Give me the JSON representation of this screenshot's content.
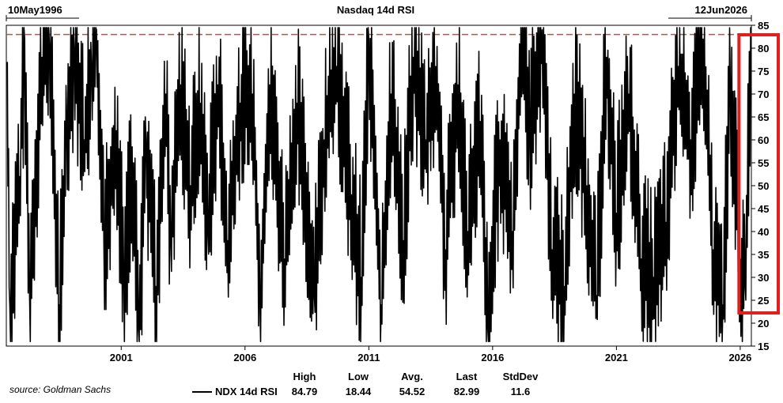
{
  "chart_data": {
    "type": "line",
    "title": "Nasdaq 14d RSI",
    "start_label": "10May1996",
    "end_label": "12Jun2026",
    "x_tick_labels": [
      "2001",
      "2006",
      "2011",
      "2016",
      "2021",
      "2026"
    ],
    "y_tick_labels": [
      "15",
      "20",
      "25",
      "30",
      "35",
      "40",
      "45",
      "50",
      "55",
      "60",
      "65",
      "70",
      "75",
      "80",
      "85"
    ],
    "ylim": [
      15,
      85
    ],
    "x_range_years": [
      1996.36,
      2026.45
    ],
    "reference_line": {
      "y": 83,
      "style": "dashed",
      "color": "#c0504d"
    },
    "highlight_box": {
      "x_range_years": [
        2025.95,
        2026.45
      ],
      "color": "#e02020"
    },
    "series": [
      {
        "name": "NDX 14d RSI",
        "color": "#000000",
        "points": [
          [
            1996.4,
            77
          ],
          [
            1996.5,
            24
          ],
          [
            1996.9,
            52
          ],
          [
            1997.1,
            82
          ],
          [
            1997.3,
            26
          ],
          [
            1997.8,
            78
          ],
          [
            1998.1,
            81
          ],
          [
            1998.5,
            24
          ],
          [
            1998.8,
            64
          ],
          [
            1999.1,
            80
          ],
          [
            1999.5,
            60
          ],
          [
            1999.8,
            76
          ],
          [
            2000.0,
            84
          ],
          [
            2000.3,
            38
          ],
          [
            2000.8,
            62
          ],
          [
            2001.1,
            30
          ],
          [
            2001.5,
            55
          ],
          [
            2001.7,
            18.44
          ],
          [
            2002.0,
            60
          ],
          [
            2002.4,
            28
          ],
          [
            2002.8,
            70
          ],
          [
            2003.0,
            38
          ],
          [
            2003.4,
            72
          ],
          [
            2003.8,
            50
          ],
          [
            2004.2,
            68
          ],
          [
            2004.5,
            40
          ],
          [
            2004.9,
            72
          ],
          [
            2005.3,
            38
          ],
          [
            2005.8,
            68
          ],
          [
            2006.3,
            70
          ],
          [
            2006.6,
            24
          ],
          [
            2007.0,
            72
          ],
          [
            2007.6,
            34
          ],
          [
            2008.1,
            68
          ],
          [
            2008.8,
            26
          ],
          [
            2009.2,
            60
          ],
          [
            2009.7,
            76
          ],
          [
            2010.3,
            48
          ],
          [
            2010.7,
            30
          ],
          [
            2011.0,
            82
          ],
          [
            2011.5,
            24
          ],
          [
            2011.9,
            70
          ],
          [
            2012.4,
            38
          ],
          [
            2012.8,
            78
          ],
          [
            2013.3,
            60
          ],
          [
            2013.7,
            76
          ],
          [
            2014.1,
            36
          ],
          [
            2014.6,
            72
          ],
          [
            2015.0,
            40
          ],
          [
            2015.5,
            64
          ],
          [
            2015.8,
            19
          ],
          [
            2016.3,
            60
          ],
          [
            2016.8,
            40
          ],
          [
            2017.2,
            84.79
          ],
          [
            2017.5,
            62
          ],
          [
            2018.0,
            84
          ],
          [
            2018.4,
            36
          ],
          [
            2018.9,
            28
          ],
          [
            2019.3,
            70
          ],
          [
            2019.8,
            50
          ],
          [
            2020.2,
            26
          ],
          [
            2020.6,
            78
          ],
          [
            2021.0,
            44
          ],
          [
            2021.5,
            70
          ],
          [
            2022.0,
            34
          ],
          [
            2022.5,
            30
          ],
          [
            2023.0,
            42
          ],
          [
            2023.5,
            76
          ],
          [
            2024.0,
            60
          ],
          [
            2024.5,
            82
          ],
          [
            2024.9,
            36
          ],
          [
            2025.3,
            24
          ],
          [
            2025.6,
            72
          ],
          [
            2026.0,
            34
          ],
          [
            2026.2,
            28
          ],
          [
            2026.45,
            82.99
          ]
        ]
      }
    ],
    "stats": {
      "headers": [
        "High",
        "Low",
        "Avg.",
        "Last",
        "StdDev"
      ],
      "values": [
        "84.79",
        "18.44",
        "54.52",
        "82.99",
        "11.6"
      ]
    },
    "source": "source: Goldman Sachs"
  }
}
